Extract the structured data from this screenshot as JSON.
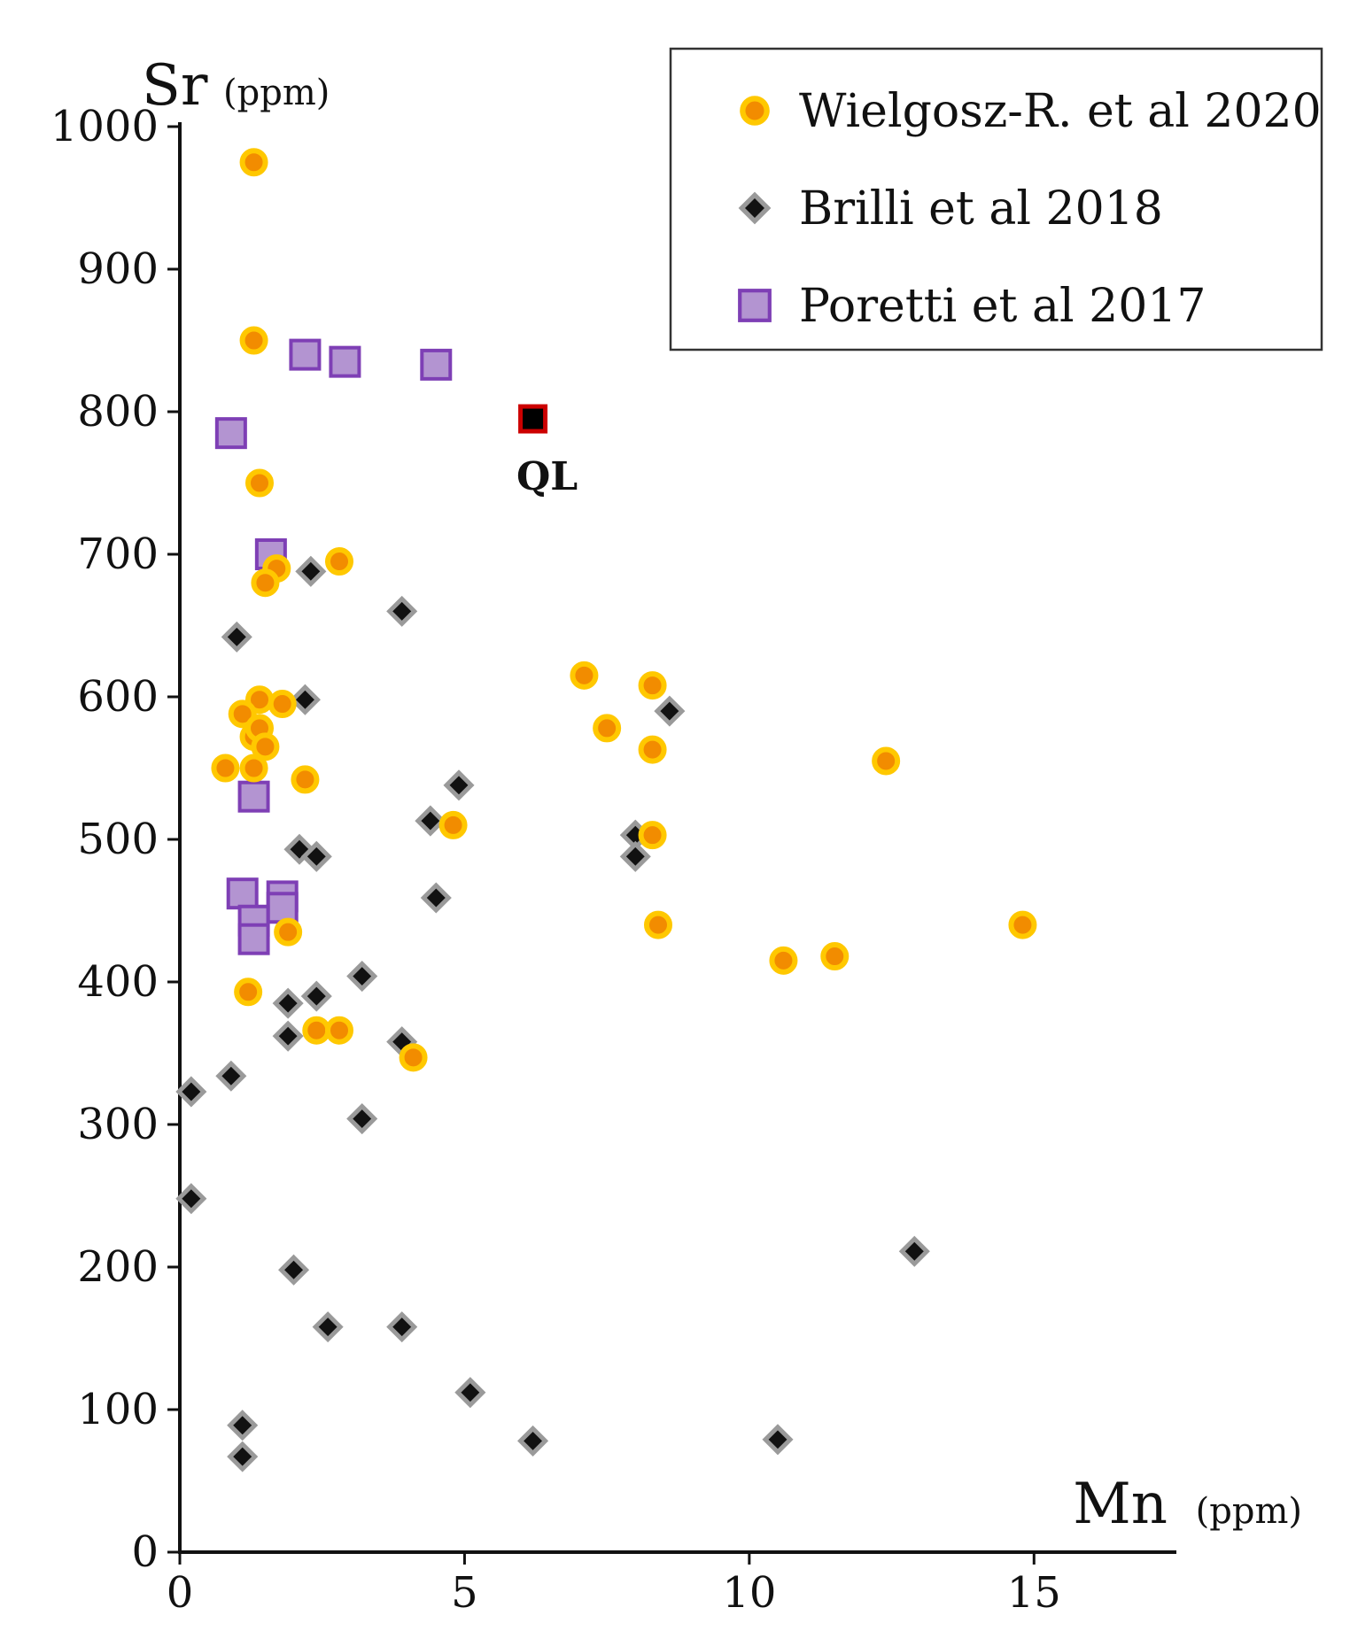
{
  "chart_data": {
    "type": "scatter",
    "title": "",
    "xlabel": "Mn",
    "xlabel_unit": "(ppm)",
    "ylabel": "Sr",
    "ylabel_unit": "(ppm)",
    "xlim": [
      0,
      17.5
    ],
    "ylim": [
      0,
      1000
    ],
    "xticks": [
      0,
      5,
      10,
      15
    ],
    "yticks": [
      0,
      100,
      200,
      300,
      400,
      500,
      600,
      700,
      800,
      900,
      1000
    ],
    "legend_position": "top-right",
    "grid": false,
    "series": [
      {
        "name": "Wielgosz-R. et al 2020",
        "marker": "circle",
        "fill": "#f28c00",
        "stroke": "#ffc800",
        "points": [
          [
            1.3,
            975
          ],
          [
            1.3,
            850
          ],
          [
            1.4,
            750
          ],
          [
            1.7,
            690
          ],
          [
            1.5,
            680
          ],
          [
            2.8,
            695
          ],
          [
            1.4,
            598
          ],
          [
            1.8,
            595
          ],
          [
            1.1,
            588
          ],
          [
            1.3,
            572
          ],
          [
            1.4,
            578
          ],
          [
            1.5,
            565
          ],
          [
            0.8,
            550
          ],
          [
            1.3,
            550
          ],
          [
            2.2,
            542
          ],
          [
            4.8,
            510
          ],
          [
            1.9,
            435
          ],
          [
            1.2,
            393
          ],
          [
            2.4,
            366
          ],
          [
            2.8,
            366
          ],
          [
            4.1,
            347
          ],
          [
            7.1,
            615
          ],
          [
            8.3,
            608
          ],
          [
            7.5,
            578
          ],
          [
            8.3,
            563
          ],
          [
            8.3,
            503
          ],
          [
            8.4,
            440
          ],
          [
            10.6,
            415
          ],
          [
            11.5,
            418
          ],
          [
            12.4,
            555
          ],
          [
            14.8,
            440
          ]
        ]
      },
      {
        "name": "Brilli et al 2018",
        "marker": "diamond",
        "fill": "#111111",
        "stroke": "#9a9a9a",
        "points": [
          [
            1.0,
            642
          ],
          [
            2.3,
            688
          ],
          [
            3.9,
            660
          ],
          [
            2.2,
            598
          ],
          [
            8.6,
            590
          ],
          [
            4.9,
            538
          ],
          [
            4.4,
            513
          ],
          [
            8.0,
            503
          ],
          [
            8.0,
            488
          ],
          [
            2.1,
            493
          ],
          [
            2.4,
            488
          ],
          [
            4.5,
            459
          ],
          [
            3.2,
            404
          ],
          [
            1.9,
            385
          ],
          [
            2.4,
            390
          ],
          [
            1.9,
            362
          ],
          [
            3.9,
            358
          ],
          [
            0.9,
            334
          ],
          [
            0.2,
            323
          ],
          [
            3.2,
            304
          ],
          [
            0.2,
            248
          ],
          [
            2.0,
            198
          ],
          [
            12.9,
            211
          ],
          [
            2.6,
            158
          ],
          [
            3.9,
            158
          ],
          [
            5.1,
            112
          ],
          [
            1.1,
            89
          ],
          [
            1.1,
            67
          ],
          [
            6.2,
            78
          ],
          [
            10.5,
            79
          ]
        ]
      },
      {
        "name": "Poretti et al 2017",
        "marker": "square",
        "fill": "#b394d1",
        "stroke": "#7e3fb5",
        "points": [
          [
            2.2,
            840
          ],
          [
            2.9,
            835
          ],
          [
            4.5,
            833
          ],
          [
            0.9,
            785
          ],
          [
            1.6,
            700
          ],
          [
            1.3,
            530
          ],
          [
            1.1,
            462
          ],
          [
            1.8,
            460
          ],
          [
            1.8,
            452
          ],
          [
            1.3,
            443
          ],
          [
            1.3,
            430
          ]
        ]
      }
    ],
    "annotations": [
      {
        "label": "QL",
        "x": 6.2,
        "y": 795,
        "marker": "square",
        "fill": "#000000",
        "stroke": "#cc0000"
      }
    ]
  }
}
